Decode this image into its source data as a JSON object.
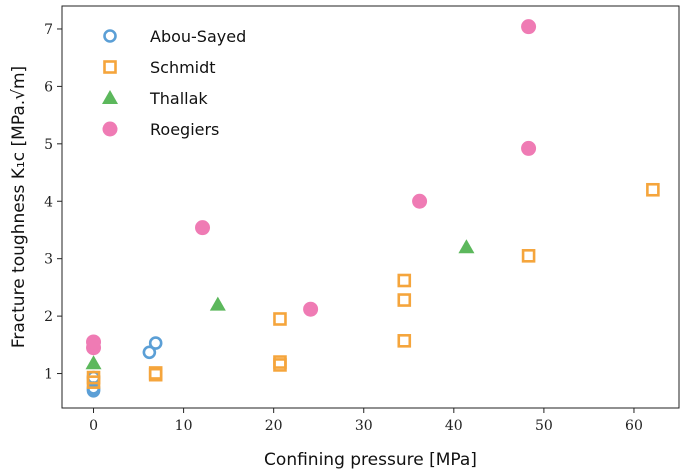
{
  "chart_data": {
    "type": "scatter",
    "xlabel": "Confining pressure [MPa]",
    "ylabel": "Fracture toughness  K₁c [MPa.√m]",
    "xlim": [
      -3.5,
      65
    ],
    "ylim": [
      0.4,
      7.4
    ],
    "x_ticks": [
      0,
      10,
      20,
      30,
      40,
      50,
      60
    ],
    "y_ticks": [
      1,
      2,
      3,
      4,
      5,
      6,
      7
    ],
    "grid": false,
    "legend_position": "top-left",
    "series": [
      {
        "name": "Abou-Sayed",
        "marker": "circle-open",
        "color": "#5b9fd6",
        "points": [
          [
            0,
            0.7
          ],
          [
            0,
            0.72
          ],
          [
            0,
            0.75
          ],
          [
            0,
            0.93
          ],
          [
            6.2,
            1.37
          ],
          [
            6.9,
            1.53
          ]
        ]
      },
      {
        "name": "Schmidt",
        "marker": "square-open",
        "color": "#f5a53c",
        "points": [
          [
            0,
            0.85
          ],
          [
            0,
            0.93
          ],
          [
            6.9,
            0.98
          ],
          [
            6.9,
            1.01
          ],
          [
            20.7,
            1.15
          ],
          [
            20.7,
            1.2
          ],
          [
            20.7,
            1.95
          ],
          [
            34.5,
            1.57
          ],
          [
            34.5,
            2.28
          ],
          [
            34.5,
            2.62
          ],
          [
            48.3,
            3.05
          ],
          [
            62.1,
            4.2
          ]
        ]
      },
      {
        "name": "Thallak",
        "marker": "triangle",
        "color": "#5cb85c",
        "points": [
          [
            0,
            1.18
          ],
          [
            13.8,
            2.2
          ],
          [
            41.4,
            3.2
          ]
        ]
      },
      {
        "name": "Roegiers",
        "marker": "circle-filled",
        "color": "#ef7bb4",
        "points": [
          [
            0,
            1.45
          ],
          [
            0,
            1.55
          ],
          [
            12.1,
            3.54
          ],
          [
            24.1,
            2.12
          ],
          [
            36.2,
            4.0
          ],
          [
            48.3,
            4.92
          ],
          [
            48.3,
            7.04
          ]
        ]
      }
    ]
  }
}
